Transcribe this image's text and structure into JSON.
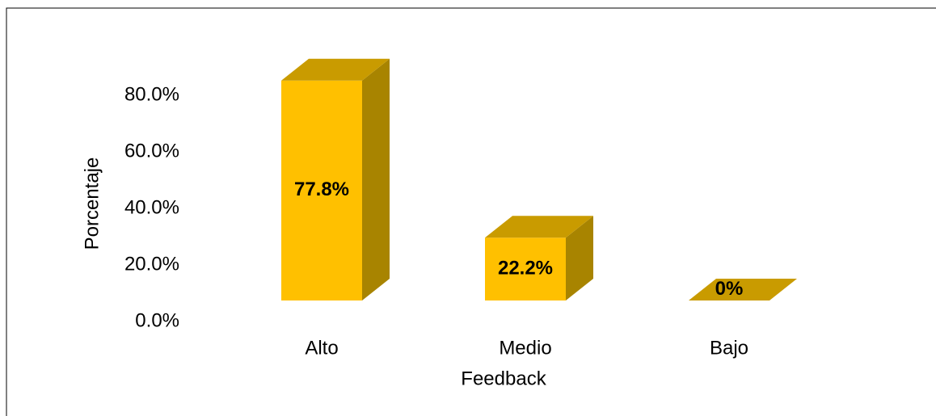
{
  "chart_data": {
    "type": "bar3d",
    "categories": [
      "Alto",
      "Medio",
      "Bajo"
    ],
    "values": [
      77.8,
      22.2,
      0
    ],
    "value_labels": [
      "77.8%",
      "22.2%",
      "0%"
    ],
    "color": "#ffc000",
    "x_label": "Feedback",
    "y_label": "Porcentaje",
    "ylim": [
      0,
      80
    ],
    "yticks": [
      {
        "value": 0,
        "label": "0.0%"
      },
      {
        "value": 20,
        "label": "20.0%"
      },
      {
        "value": 40,
        "label": "40.0%"
      },
      {
        "value": 60,
        "label": "60.0%"
      },
      {
        "value": 80,
        "label": "80.0%"
      }
    ]
  }
}
